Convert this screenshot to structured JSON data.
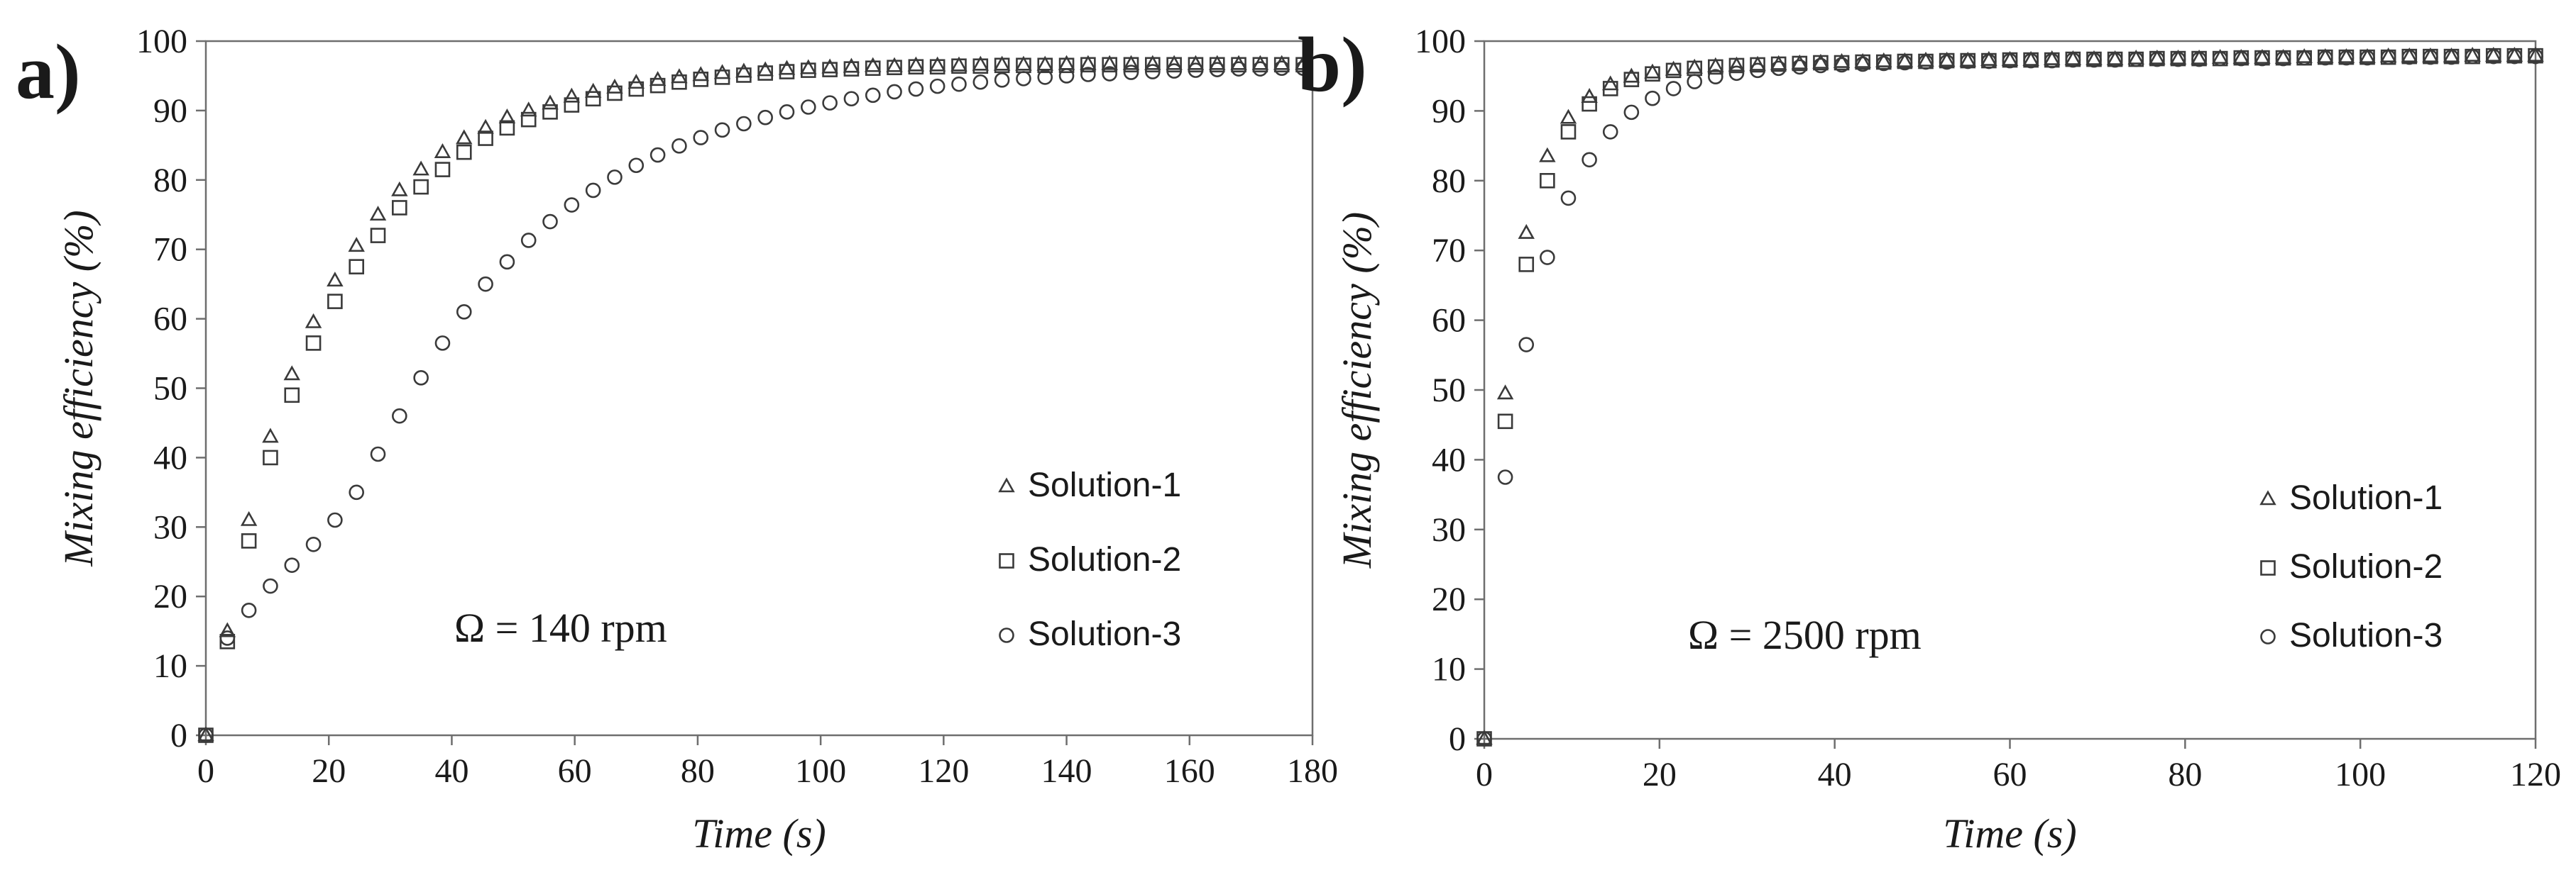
{
  "chart_data": [
    {
      "panel_label": "a)",
      "type": "scatter",
      "xlabel": "Time (s)",
      "ylabel": "Mixing efficiency (%)",
      "xlim": [
        0,
        180
      ],
      "ylim": [
        0,
        100
      ],
      "xticks": [
        "0",
        "20",
        "40",
        "60",
        "80",
        "100",
        "120",
        "140",
        "160",
        "180"
      ],
      "yticks": [
        "0",
        "10",
        "20",
        "30",
        "40",
        "50",
        "60",
        "70",
        "80",
        "90",
        "100"
      ],
      "grid": false,
      "legend_position": "right",
      "annotation": "Ω = 140 rpm",
      "series": [
        {
          "name": "Solution-1",
          "marker": "triangle",
          "x": [
            0,
            3.5,
            7,
            10.5,
            14,
            17.5,
            21,
            24.5,
            28,
            31.5,
            35,
            38.5,
            42,
            45.5,
            49,
            52.5,
            56,
            59.5,
            63,
            66.5,
            70,
            73.5,
            77,
            80.5,
            84,
            87.5,
            91,
            94.5,
            98,
            101.5,
            105,
            108.5,
            112,
            115.5,
            119,
            122.5,
            126,
            129.5,
            133,
            136.5,
            140,
            143.5,
            147,
            150.5,
            154,
            157.5,
            161,
            164.5,
            168,
            171.5,
            175,
            178.5
          ],
          "y": [
            0,
            15,
            31,
            43,
            52,
            59.5,
            65.5,
            70.5,
            75,
            78.5,
            81.5,
            84,
            86,
            87.5,
            89,
            90,
            91,
            92,
            92.7,
            93.3,
            94,
            94.4,
            94.8,
            95.1,
            95.4,
            95.6,
            95.8,
            96,
            96.1,
            96.2,
            96.3,
            96.4,
            96.4,
            96.5,
            96.5,
            96.5,
            96.6,
            96.6,
            96.6,
            96.6,
            96.7,
            96.7,
            96.7,
            96.7,
            96.7,
            96.7,
            96.7,
            96.7,
            96.7,
            96.7,
            96.7,
            96.7
          ]
        },
        {
          "name": "Solution-2",
          "marker": "square",
          "x": [
            0,
            3.5,
            7,
            10.5,
            14,
            17.5,
            21,
            24.5,
            28,
            31.5,
            35,
            38.5,
            42,
            45.5,
            49,
            52.5,
            56,
            59.5,
            63,
            66.5,
            70,
            73.5,
            77,
            80.5,
            84,
            87.5,
            91,
            94.5,
            98,
            101.5,
            105,
            108.5,
            112,
            115.5,
            119,
            122.5,
            126,
            129.5,
            133,
            136.5,
            140,
            143.5,
            147,
            150.5,
            154,
            157.5,
            161,
            164.5,
            168,
            171.5,
            175,
            178.5
          ],
          "y": [
            0,
            13.5,
            28,
            40,
            49,
            56.5,
            62.5,
            67.5,
            72,
            76,
            79,
            81.5,
            84,
            86,
            87.5,
            88.7,
            89.8,
            90.8,
            91.7,
            92.5,
            93.1,
            93.6,
            94.1,
            94.5,
            94.8,
            95.1,
            95.4,
            95.6,
            95.8,
            95.9,
            96,
            96.1,
            96.2,
            96.3,
            96.3,
            96.4,
            96.4,
            96.5,
            96.5,
            96.5,
            96.5,
            96.6,
            96.6,
            96.6,
            96.6,
            96.6,
            96.6,
            96.6,
            96.6,
            96.6,
            96.6,
            96.6
          ]
        },
        {
          "name": "Solution-3",
          "marker": "circle",
          "x": [
            0,
            3.5,
            7,
            10.5,
            14,
            17.5,
            21,
            24.5,
            28,
            31.5,
            35,
            38.5,
            42,
            45.5,
            49,
            52.5,
            56,
            59.5,
            63,
            66.5,
            70,
            73.5,
            77,
            80.5,
            84,
            87.5,
            91,
            94.5,
            98,
            101.5,
            105,
            108.5,
            112,
            115.5,
            119,
            122.5,
            126,
            129.5,
            133,
            136.5,
            140,
            143.5,
            147,
            150.5,
            154,
            157.5,
            161,
            164.5,
            168,
            171.5,
            175,
            178.5
          ],
          "y": [
            0,
            14,
            18,
            21.5,
            24.5,
            27.5,
            31,
            35,
            40.5,
            46,
            51.5,
            56.5,
            61,
            65,
            68.2,
            71.3,
            74,
            76.4,
            78.5,
            80.4,
            82.1,
            83.6,
            84.9,
            86.1,
            87.2,
            88.1,
            89,
            89.8,
            90.5,
            91.1,
            91.7,
            92.2,
            92.7,
            93.1,
            93.5,
            93.8,
            94.1,
            94.4,
            94.6,
            94.8,
            95,
            95.2,
            95.3,
            95.5,
            95.6,
            95.7,
            95.8,
            95.9,
            96,
            96,
            96.1,
            96.1
          ]
        }
      ]
    },
    {
      "panel_label": "b)",
      "type": "scatter",
      "xlabel": "Time (s)",
      "ylabel": "Mixing efficiency (%)",
      "xlim": [
        0,
        120
      ],
      "ylim": [
        0,
        100
      ],
      "xticks": [
        "0",
        "20",
        "40",
        "60",
        "80",
        "100",
        "120"
      ],
      "yticks": [
        "0",
        "10",
        "20",
        "30",
        "40",
        "50",
        "60",
        "70",
        "80",
        "90",
        "100"
      ],
      "grid": false,
      "legend_position": "right",
      "annotation": "Ω = 2500 rpm",
      "series": [
        {
          "name": "Solution-1",
          "marker": "triangle",
          "x": [
            0,
            2.4,
            4.8,
            7.2,
            9.6,
            12,
            14.4,
            16.8,
            19.2,
            21.6,
            24,
            26.4,
            28.8,
            31.2,
            33.6,
            36,
            38.4,
            40.8,
            43.2,
            45.6,
            48,
            50.4,
            52.8,
            55.2,
            57.6,
            60,
            62.4,
            64.8,
            67.2,
            69.6,
            72,
            74.4,
            76.8,
            79.2,
            81.6,
            84,
            86.4,
            88.8,
            91.2,
            93.6,
            96,
            98.4,
            100.8,
            103.2,
            105.6,
            108,
            110.4,
            112.8,
            115.2,
            117.6,
            120
          ],
          "y": [
            0,
            49.5,
            72.5,
            83.5,
            89,
            92,
            93.8,
            94.9,
            95.5,
            95.9,
            96.2,
            96.4,
            96.5,
            96.6,
            96.7,
            96.8,
            96.9,
            97,
            97,
            97.1,
            97.1,
            97.2,
            97.2,
            97.2,
            97.3,
            97.3,
            97.3,
            97.4,
            97.4,
            97.4,
            97.4,
            97.5,
            97.5,
            97.5,
            97.5,
            97.6,
            97.6,
            97.6,
            97.6,
            97.7,
            97.7,
            97.7,
            97.7,
            97.8,
            97.8,
            97.8,
            97.8,
            97.9,
            97.9,
            97.9,
            97.9
          ]
        },
        {
          "name": "Solution-2",
          "marker": "square",
          "x": [
            0,
            2.4,
            4.8,
            7.2,
            9.6,
            12,
            14.4,
            16.8,
            19.2,
            21.6,
            24,
            26.4,
            28.8,
            31.2,
            33.6,
            36,
            38.4,
            40.8,
            43.2,
            45.6,
            48,
            50.4,
            52.8,
            55.2,
            57.6,
            60,
            62.4,
            64.8,
            67.2,
            69.6,
            72,
            74.4,
            76.8,
            79.2,
            81.6,
            84,
            86.4,
            88.8,
            91.2,
            93.6,
            96,
            98.4,
            100.8,
            103.2,
            105.6,
            108,
            110.4,
            112.8,
            115.2,
            117.6,
            120
          ],
          "y": [
            0,
            45.5,
            68,
            80,
            87,
            91,
            93.2,
            94.5,
            95.3,
            95.8,
            96.1,
            96.3,
            96.5,
            96.6,
            96.7,
            96.8,
            96.9,
            96.9,
            97,
            97,
            97.1,
            97.1,
            97.2,
            97.2,
            97.2,
            97.3,
            97.3,
            97.3,
            97.4,
            97.4,
            97.4,
            97.4,
            97.5,
            97.5,
            97.5,
            97.5,
            97.6,
            97.6,
            97.6,
            97.6,
            97.7,
            97.7,
            97.7,
            97.7,
            97.8,
            97.8,
            97.8,
            97.8,
            97.9,
            97.9,
            97.9
          ]
        },
        {
          "name": "Solution-3",
          "marker": "circle",
          "x": [
            0,
            2.4,
            4.8,
            7.2,
            9.6,
            12,
            14.4,
            16.8,
            19.2,
            21.6,
            24,
            26.4,
            28.8,
            31.2,
            33.6,
            36,
            38.4,
            40.8,
            43.2,
            45.6,
            48,
            50.4,
            52.8,
            55.2,
            57.6,
            60,
            62.4,
            64.8,
            67.2,
            69.6,
            72,
            74.4,
            76.8,
            79.2,
            81.6,
            84,
            86.4,
            88.8,
            91.2,
            93.6,
            96,
            98.4,
            100.8,
            103.2,
            105.6,
            108,
            110.4,
            112.8,
            115.2,
            117.6,
            120
          ],
          "y": [
            0,
            37.5,
            56.5,
            69,
            77.5,
            83,
            87,
            89.8,
            91.8,
            93.2,
            94.2,
            94.9,
            95.4,
            95.8,
            96.1,
            96.3,
            96.5,
            96.6,
            96.7,
            96.8,
            96.9,
            97,
            97,
            97.1,
            97.1,
            97.2,
            97.2,
            97.2,
            97.3,
            97.3,
            97.3,
            97.4,
            97.4,
            97.4,
            97.4,
            97.5,
            97.5,
            97.5,
            97.5,
            97.6,
            97.6,
            97.6,
            97.6,
            97.7,
            97.7,
            97.7,
            97.7,
            97.8,
            97.8,
            97.8,
            97.8
          ]
        }
      ]
    }
  ]
}
